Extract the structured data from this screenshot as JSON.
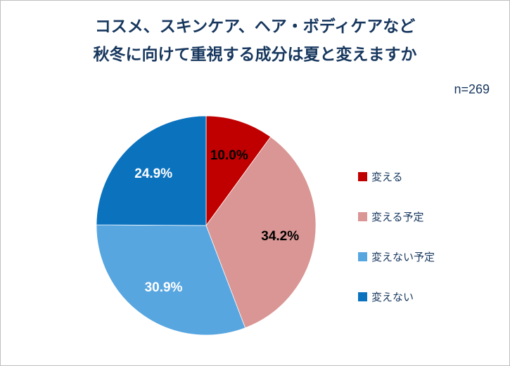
{
  "title": {
    "line1": "コスメ、スキンケア、ヘア・ボディケアなど",
    "line2": "秋冬に向けて重視する成分は夏と変えますか"
  },
  "sample_size": "n=269",
  "colors": {
    "title_text": "#17375E",
    "border": "#BFBFBF"
  },
  "chart_data": {
    "type": "pie",
    "title": "コスメ、スキンケア、ヘア・ボディケアなど 秋冬に向けて重視する成分は夏と変えますか",
    "sample_size": "n=269",
    "categories": [
      "変える",
      "変える予定",
      "変えない予定",
      "変えない"
    ],
    "values": [
      10.0,
      34.2,
      30.9,
      24.9
    ],
    "labels": [
      "10.0%",
      "34.2%",
      "30.9%",
      "24.9%"
    ],
    "colors": [
      "#C00000",
      "#D99694",
      "#58A6E0",
      "#0B72BE"
    ],
    "label_colors": [
      "#000000",
      "#000000",
      "#FFFFFF",
      "#FFFFFF"
    ],
    "start_angle": -90,
    "direction": "clockwise",
    "legend_position": "right",
    "grid": false
  }
}
